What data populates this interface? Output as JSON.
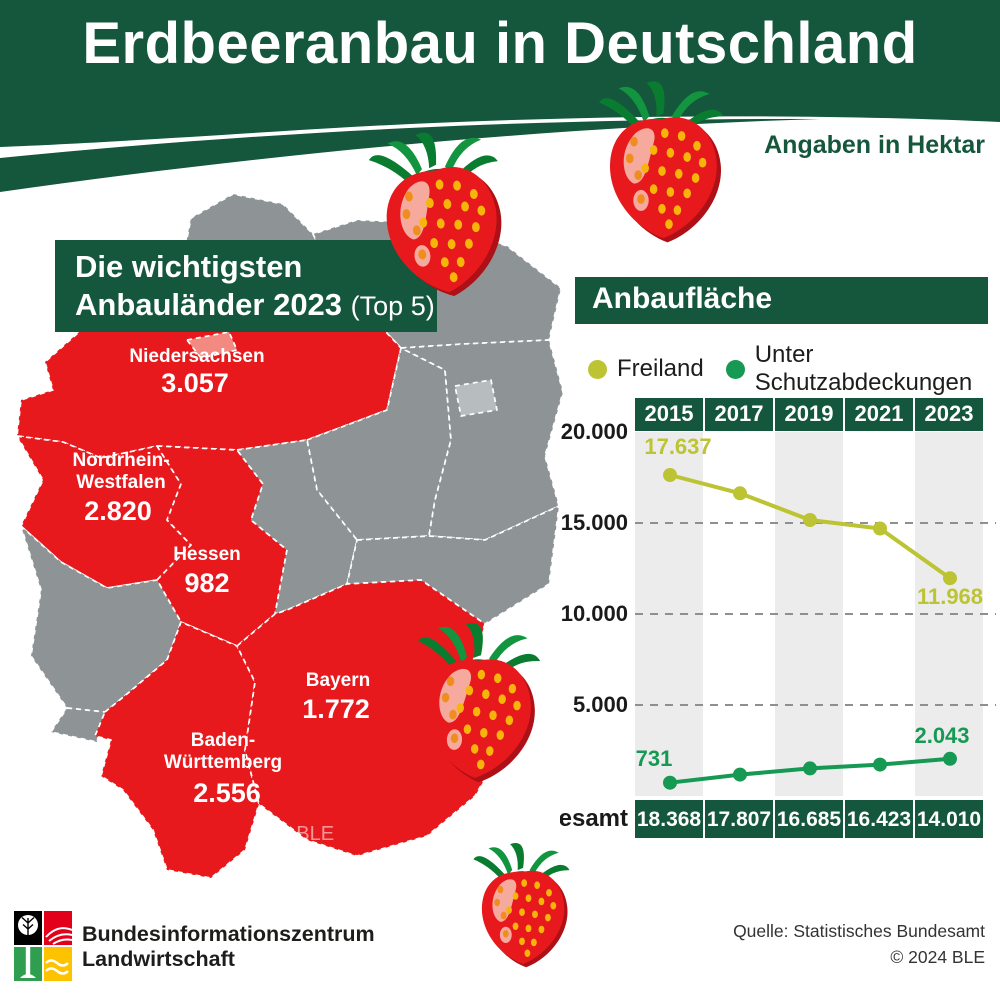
{
  "colors": {
    "dark_green": "#14573C",
    "red": "#E7191D",
    "light_red": "#F28A82",
    "map_gray": "#8E9496",
    "berlin_gray": "#B7BDBE",
    "freiland": "#BCC433",
    "schutz": "#169A53",
    "stripe": "#ECECEC",
    "logo_red": "#E2001A",
    "logo_green": "#2F9E4F",
    "logo_yellow": "#FDC300"
  },
  "header": {
    "title": "Erdbeeranbau in Deutschland",
    "unit_note": "Angaben in Hektar"
  },
  "map": {
    "box": {
      "line1": "Die wichtigsten",
      "line2_bold": "Anbauländer 2023",
      "line2_suffix": "(Top 5)"
    },
    "watermark": "© BLE",
    "states": [
      {
        "name": "Niedersachsen",
        "value": "3.057"
      },
      {
        "line1": "Nordrhein-",
        "line2": "Westfalen",
        "value": "2.820"
      },
      {
        "name": "Hessen",
        "value": "982"
      },
      {
        "name": "Bayern",
        "value": "1.772"
      },
      {
        "line1": "Baden-",
        "line2": "Württemberg",
        "value": "2.556"
      }
    ]
  },
  "chart_data": {
    "type": "line",
    "title": "Anbaufläche",
    "unit": "Hektar",
    "categories": [
      "2015",
      "2017",
      "2019",
      "2021",
      "2023"
    ],
    "series": [
      {
        "name": "Freiland",
        "color": "#BCC433",
        "values": [
          17637,
          16632,
          15166,
          14698,
          11968
        ]
      },
      {
        "name": "Unter Schutzabdeckungen",
        "color": "#169A53",
        "values": [
          731,
          1175,
          1519,
          1725,
          2043
        ]
      }
    ],
    "point_labels": {
      "freiland_first": "17.637",
      "freiland_last": "11.968",
      "schutz_first": "731",
      "schutz_last": "2.043"
    },
    "totals_row": {
      "label": "Insgesamt",
      "values": [
        "18.368",
        "17.807",
        "16.685",
        "16.423",
        "14.010"
      ]
    },
    "ylim": [
      0,
      20000
    ],
    "yticks": [
      "20.000",
      "15.000",
      "10.000",
      "5.000"
    ],
    "grid": "dashed horizontal lines at 15.000, 10.000, 5.000",
    "legend_position": "top"
  },
  "footer": {
    "org_line1": "Bundesinformationszentrum",
    "org_line2": "Landwirtschaft",
    "source_line1": "Quelle: Statistisches Bundesamt",
    "source_line2": "© 2024 BLE"
  }
}
